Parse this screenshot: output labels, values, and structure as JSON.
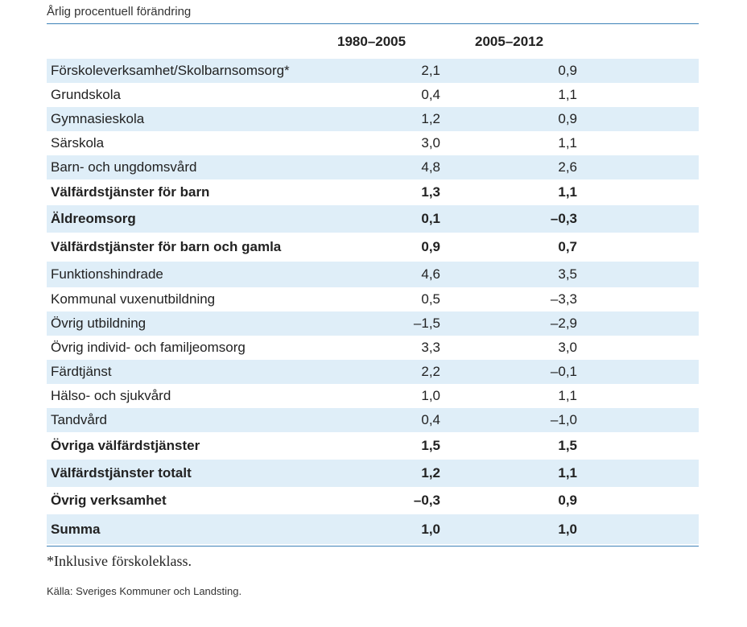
{
  "caption": "Årlig procentuell förändring",
  "columns": [
    "1980–2005",
    "2005–2012"
  ],
  "rows": [
    {
      "label": "Förskoleverksamhet/Skolbarnsomsorg*",
      "v1": "2,1",
      "v2": "0,9",
      "bold": false,
      "shaded": true
    },
    {
      "label": "Grundskola",
      "v1": "0,4",
      "v2": "1,1",
      "bold": false,
      "shaded": false
    },
    {
      "label": "Gymnasieskola",
      "v1": "1,2",
      "v2": "0,9",
      "bold": false,
      "shaded": true
    },
    {
      "label": "Särskola",
      "v1": "3,0",
      "v2": "1,1",
      "bold": false,
      "shaded": false
    },
    {
      "label": "Barn- och ungdomsvård",
      "v1": "4,8",
      "v2": "2,6",
      "bold": false,
      "shaded": true
    },
    {
      "label": "Välfärdstjänster för barn",
      "v1": "1,3",
      "v2": "1,1",
      "bold": true,
      "shaded": false
    },
    {
      "label": "Äldreomsorg",
      "v1": "0,1",
      "v2": "–0,3",
      "bold": true,
      "shaded": true
    },
    {
      "label": "Välfärdstjänster för barn och gamla",
      "v1": "0,9",
      "v2": "0,7",
      "bold": true,
      "shaded": false
    },
    {
      "label": "Funktionshindrade",
      "v1": "4,6",
      "v2": "3,5",
      "bold": false,
      "shaded": true
    },
    {
      "label": "Kommunal vuxenutbildning",
      "v1": "0,5",
      "v2": "–3,3",
      "bold": false,
      "shaded": false
    },
    {
      "label": "Övrig utbildning",
      "v1": "–1,5",
      "v2": "–2,9",
      "bold": false,
      "shaded": true
    },
    {
      "label": "Övrig individ- och familjeomsorg",
      "v1": "3,3",
      "v2": "3,0",
      "bold": false,
      "shaded": false
    },
    {
      "label": "Färdtjänst",
      "v1": "2,2",
      "v2": "–0,1",
      "bold": false,
      "shaded": true
    },
    {
      "label": "Hälso- och sjukvård",
      "v1": "1,0",
      "v2": "1,1",
      "bold": false,
      "shaded": false
    },
    {
      "label": "Tandvård",
      "v1": "0,4",
      "v2": "–1,0",
      "bold": false,
      "shaded": true
    },
    {
      "label": "Övriga välfärdstjänster",
      "v1": "1,5",
      "v2": "1,5",
      "bold": true,
      "shaded": false
    },
    {
      "label": "Välfärdstjänster totalt",
      "v1": "1,2",
      "v2": "1,1",
      "bold": true,
      "shaded": true
    },
    {
      "label": "Övrig verksamhet",
      "v1": "–0,3",
      "v2": "0,9",
      "bold": true,
      "shaded": false
    },
    {
      "label": "Summa",
      "v1": "1,0",
      "v2": "1,0",
      "bold": true,
      "shaded": true
    }
  ],
  "footnote": "*Inklusive förskoleklass.",
  "source": "Källa: Sveriges Kommuner och Landsting.",
  "colors": {
    "rule": "#3d82b8",
    "shade": "#dfeef8"
  }
}
